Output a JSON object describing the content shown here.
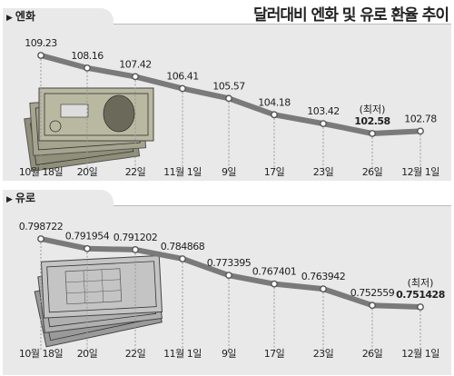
{
  "title": "달러대비 엔화 및 유로 환율 추이",
  "colors": {
    "panel_bg": "#e9e9e9",
    "line": "#7a7a7a",
    "dot": "#555555",
    "guide": "#999999"
  },
  "chart_data": [
    {
      "type": "line",
      "title": "엔화",
      "categories": [
        "10월 18일",
        "20일",
        "22일",
        "11월 1일",
        "9일",
        "17일",
        "23일",
        "26일",
        "12월 1일"
      ],
      "values": [
        109.23,
        108.16,
        107.42,
        106.41,
        105.57,
        104.18,
        103.42,
        102.58,
        102.78
      ],
      "value_labels": [
        "109.23",
        "108.16",
        "107.42",
        "106.41",
        "105.57",
        "104.18",
        "103.42",
        "102.58",
        "102.78"
      ],
      "annotation": {
        "index": 7,
        "text": "(최저)"
      },
      "ylim": [
        101.8,
        110.2
      ],
      "grid": false,
      "illustration": "yen-banknotes"
    },
    {
      "type": "line",
      "title": "유로",
      "categories": [
        "10월 18일",
        "20일",
        "22일",
        "11월 1일",
        "9일",
        "17일",
        "23일",
        "26일",
        "12월 1일"
      ],
      "values": [
        0.798722,
        0.791954,
        0.791202,
        0.784868,
        0.773395,
        0.767401,
        0.763942,
        0.752559,
        0.751428
      ],
      "value_labels": [
        "0.798722",
        "0.791954",
        "0.791202",
        "0.784868",
        "0.773395",
        "0.767401",
        "0.763942",
        "0.752559",
        "0.751428"
      ],
      "annotation": {
        "index": 8,
        "text": "(최저)"
      },
      "ylim": [
        0.745,
        0.806
      ],
      "grid": false,
      "illustration": "euro-banknotes"
    }
  ]
}
